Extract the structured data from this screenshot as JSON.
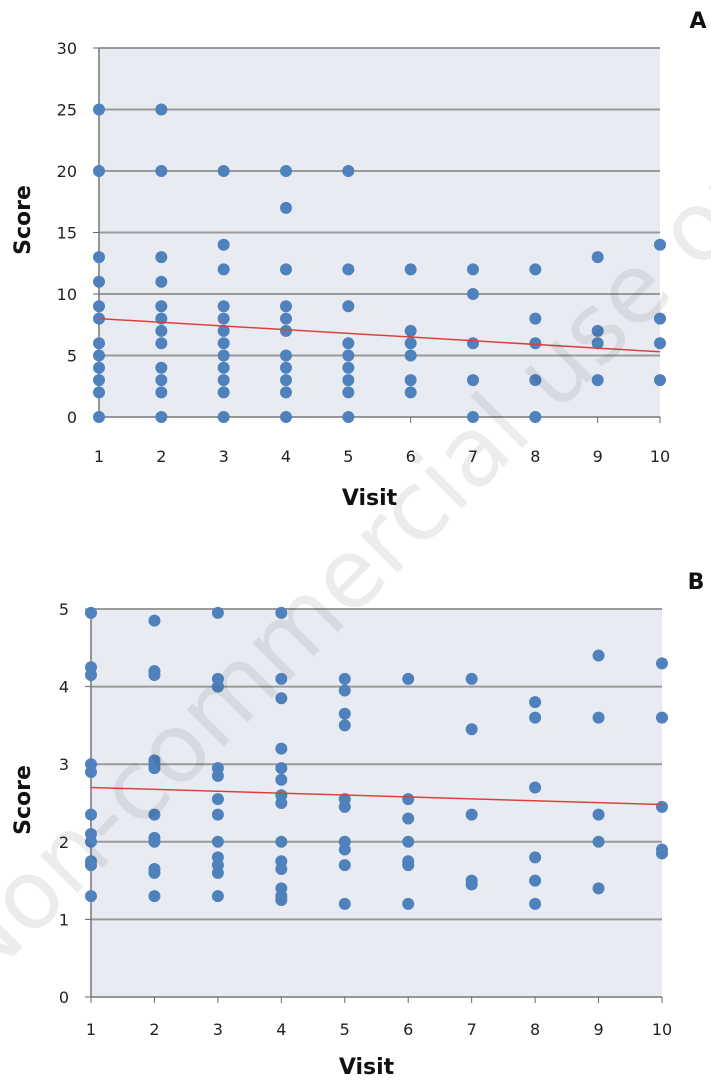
{
  "watermark": "Non-commercial use only",
  "colors": {
    "background": "#e8ecf2",
    "point": "#4f81bd",
    "trend": "#e0403a",
    "grid": "#9a9a9a"
  },
  "chart_data": [
    {
      "type": "scatter",
      "panel": "A",
      "xlabel": "Visit",
      "ylabel": "Score",
      "xlim": [
        1,
        10
      ],
      "ylim": [
        0,
        30
      ],
      "xticks": [
        1,
        2,
        3,
        4,
        5,
        6,
        7,
        8,
        9,
        10
      ],
      "yticks": [
        0,
        5,
        10,
        15,
        20,
        25,
        30
      ],
      "grid": true,
      "points": [
        [
          1,
          0
        ],
        [
          1,
          2
        ],
        [
          1,
          3
        ],
        [
          1,
          4
        ],
        [
          1,
          5
        ],
        [
          1,
          6
        ],
        [
          1,
          8
        ],
        [
          1,
          9
        ],
        [
          1,
          11
        ],
        [
          1,
          13
        ],
        [
          1,
          20
        ],
        [
          1,
          25
        ],
        [
          2,
          0
        ],
        [
          2,
          2
        ],
        [
          2,
          3
        ],
        [
          2,
          4
        ],
        [
          2,
          6
        ],
        [
          2,
          7
        ],
        [
          2,
          8
        ],
        [
          2,
          9
        ],
        [
          2,
          11
        ],
        [
          2,
          13
        ],
        [
          2,
          20
        ],
        [
          2,
          25
        ],
        [
          3,
          0
        ],
        [
          3,
          2
        ],
        [
          3,
          3
        ],
        [
          3,
          4
        ],
        [
          3,
          5
        ],
        [
          3,
          6
        ],
        [
          3,
          7
        ],
        [
          3,
          8
        ],
        [
          3,
          9
        ],
        [
          3,
          12
        ],
        [
          3,
          14
        ],
        [
          3,
          20
        ],
        [
          4,
          0
        ],
        [
          4,
          2
        ],
        [
          4,
          3
        ],
        [
          4,
          4
        ],
        [
          4,
          5
        ],
        [
          4,
          7
        ],
        [
          4,
          8
        ],
        [
          4,
          9
        ],
        [
          4,
          12
        ],
        [
          4,
          17
        ],
        [
          4,
          20
        ],
        [
          5,
          0
        ],
        [
          5,
          2
        ],
        [
          5,
          3
        ],
        [
          5,
          4
        ],
        [
          5,
          5
        ],
        [
          5,
          6
        ],
        [
          5,
          9
        ],
        [
          5,
          12
        ],
        [
          5,
          20
        ],
        [
          6,
          2
        ],
        [
          6,
          3
        ],
        [
          6,
          5
        ],
        [
          6,
          6
        ],
        [
          6,
          7
        ],
        [
          6,
          12
        ],
        [
          7,
          0
        ],
        [
          7,
          3
        ],
        [
          7,
          6
        ],
        [
          7,
          10
        ],
        [
          7,
          12
        ],
        [
          8,
          0
        ],
        [
          8,
          3
        ],
        [
          8,
          6
        ],
        [
          8,
          8
        ],
        [
          8,
          12
        ],
        [
          9,
          3
        ],
        [
          9,
          6
        ],
        [
          9,
          7
        ],
        [
          9,
          13
        ],
        [
          10,
          3
        ],
        [
          10,
          6
        ],
        [
          10,
          8
        ],
        [
          10,
          14
        ]
      ],
      "trendline": {
        "x": [
          1,
          10
        ],
        "y": [
          8.0,
          5.3
        ]
      }
    },
    {
      "type": "scatter",
      "panel": "B",
      "xlabel": "Visit",
      "ylabel": "Score",
      "xlim": [
        1,
        10
      ],
      "ylim": [
        0,
        5
      ],
      "xticks": [
        1,
        2,
        3,
        4,
        5,
        6,
        7,
        8,
        9,
        10
      ],
      "yticks": [
        0,
        1,
        2,
        3,
        4,
        5
      ],
      "grid": true,
      "points": [
        [
          1,
          1.3
        ],
        [
          1,
          1.7
        ],
        [
          1,
          1.75
        ],
        [
          1,
          2.0
        ],
        [
          1,
          2.1
        ],
        [
          1,
          2.35
        ],
        [
          1,
          2.9
        ],
        [
          1,
          3.0
        ],
        [
          1,
          4.15
        ],
        [
          1,
          4.25
        ],
        [
          1,
          4.95
        ],
        [
          2,
          1.3
        ],
        [
          2,
          1.6
        ],
        [
          2,
          1.65
        ],
        [
          2,
          2.0
        ],
        [
          2,
          2.05
        ],
        [
          2,
          2.35
        ],
        [
          2,
          2.95
        ],
        [
          2,
          3.0
        ],
        [
          2,
          3.05
        ],
        [
          2,
          4.15
        ],
        [
          2,
          4.2
        ],
        [
          2,
          4.85
        ],
        [
          3,
          1.3
        ],
        [
          3,
          1.6
        ],
        [
          3,
          1.7
        ],
        [
          3,
          1.8
        ],
        [
          3,
          2.0
        ],
        [
          3,
          2.35
        ],
        [
          3,
          2.55
        ],
        [
          3,
          2.85
        ],
        [
          3,
          2.95
        ],
        [
          3,
          4.0
        ],
        [
          3,
          4.1
        ],
        [
          3,
          4.95
        ],
        [
          4,
          1.25
        ],
        [
          4,
          1.3
        ],
        [
          4,
          1.4
        ],
        [
          4,
          1.65
        ],
        [
          4,
          1.75
        ],
        [
          4,
          2.0
        ],
        [
          4,
          2.5
        ],
        [
          4,
          2.6
        ],
        [
          4,
          2.8
        ],
        [
          4,
          2.95
        ],
        [
          4,
          3.2
        ],
        [
          4,
          3.85
        ],
        [
          4,
          4.1
        ],
        [
          4,
          4.95
        ],
        [
          5,
          1.2
        ],
        [
          5,
          1.7
        ],
        [
          5,
          1.9
        ],
        [
          5,
          2.0
        ],
        [
          5,
          2.45
        ],
        [
          5,
          2.55
        ],
        [
          5,
          3.5
        ],
        [
          5,
          3.65
        ],
        [
          5,
          3.95
        ],
        [
          5,
          4.1
        ],
        [
          6,
          1.2
        ],
        [
          6,
          1.7
        ],
        [
          6,
          1.75
        ],
        [
          6,
          2.0
        ],
        [
          6,
          2.3
        ],
        [
          6,
          2.55
        ],
        [
          6,
          4.1
        ],
        [
          7,
          1.45
        ],
        [
          7,
          1.5
        ],
        [
          7,
          2.35
        ],
        [
          7,
          3.45
        ],
        [
          7,
          4.1
        ],
        [
          8,
          1.2
        ],
        [
          8,
          1.5
        ],
        [
          8,
          1.8
        ],
        [
          8,
          2.7
        ],
        [
          8,
          3.6
        ],
        [
          8,
          3.8
        ],
        [
          9,
          1.4
        ],
        [
          9,
          2.0
        ],
        [
          9,
          2.35
        ],
        [
          9,
          3.6
        ],
        [
          9,
          4.4
        ],
        [
          10,
          1.85
        ],
        [
          10,
          1.9
        ],
        [
          10,
          2.45
        ],
        [
          10,
          3.6
        ],
        [
          10,
          4.3
        ]
      ],
      "trendline": {
        "x": [
          1,
          10
        ],
        "y": [
          2.7,
          2.48
        ]
      }
    }
  ]
}
